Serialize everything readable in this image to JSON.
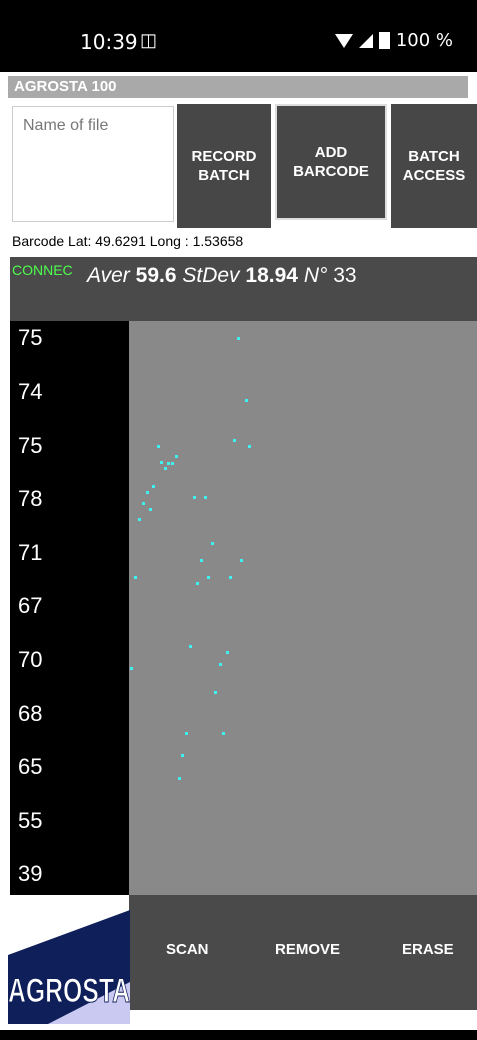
{
  "status": {
    "time": "10:39",
    "sim_icon": "sim-icon",
    "battery": "100 %"
  },
  "app": {
    "title": "AGROSTA 100"
  },
  "file": {
    "placeholder": "Name of file",
    "value": ""
  },
  "buttons": {
    "record": "RECORD\nBATCH",
    "add": "ADD\nBARCODE",
    "batch": "BATCH\nACCESS"
  },
  "gps": "Barcode Lat: 49.6291 Long : 1.53658",
  "stats": {
    "status": "CONNEC",
    "aver_label": "Aver",
    "aver": "59.6",
    "stdev_label": "StDev",
    "stdev": "18.94",
    "n_label": "N°",
    "n": "33"
  },
  "readings": [
    "75",
    "74",
    "75",
    "78",
    "71",
    "67",
    "70",
    "68",
    "65",
    "55",
    "39"
  ],
  "bottom": {
    "scan": "SCAN",
    "remove": "REMOVE",
    "erase": "ERASE"
  },
  "logo": {
    "text": "AGROSTA"
  },
  "colors": {
    "point": "#3ef0f0",
    "connected": "#4cff4c",
    "button": "#474747"
  }
}
